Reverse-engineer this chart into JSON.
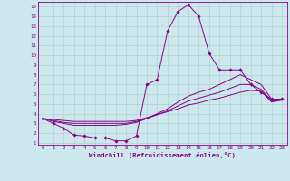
{
  "xlabel": "Windchill (Refroidissement éolien,°C)",
  "background_color": "#cce8ec",
  "grid_color": "#aacccc",
  "line_color": "#880088",
  "xlim": [
    -0.5,
    23.5
  ],
  "ylim": [
    0.8,
    15.5
  ],
  "xticks": [
    0,
    1,
    2,
    3,
    4,
    5,
    6,
    7,
    8,
    9,
    10,
    11,
    12,
    13,
    14,
    15,
    16,
    17,
    18,
    19,
    20,
    21,
    22,
    23
  ],
  "yticks": [
    1,
    2,
    3,
    4,
    5,
    6,
    7,
    8,
    9,
    10,
    11,
    12,
    13,
    14,
    15
  ],
  "line1_x": [
    0,
    1,
    2,
    3,
    4,
    5,
    6,
    7,
    8,
    9,
    10,
    11,
    12,
    13,
    14,
    15,
    16,
    17,
    18,
    19,
    20,
    21,
    22,
    23
  ],
  "line1_y": [
    3.5,
    3.0,
    2.5,
    1.8,
    1.7,
    1.5,
    1.5,
    1.2,
    1.2,
    1.7,
    7.0,
    7.5,
    12.5,
    14.5,
    15.2,
    14.0,
    10.2,
    8.5,
    8.5,
    8.5,
    7.0,
    6.2,
    5.5,
    5.5
  ],
  "line2_x": [
    0,
    1,
    2,
    3,
    4,
    5,
    6,
    7,
    8,
    9,
    10,
    11,
    12,
    13,
    14,
    15,
    16,
    17,
    18,
    19,
    20,
    21,
    22,
    23
  ],
  "line2_y": [
    3.5,
    3.2,
    3.0,
    2.8,
    2.8,
    2.8,
    2.8,
    2.8,
    2.9,
    3.1,
    3.5,
    4.0,
    4.5,
    5.2,
    5.8,
    6.2,
    6.5,
    7.0,
    7.5,
    8.0,
    7.5,
    7.0,
    5.5,
    5.5
  ],
  "line3_x": [
    0,
    1,
    2,
    3,
    4,
    5,
    6,
    7,
    8,
    9,
    10,
    11,
    12,
    13,
    14,
    15,
    16,
    17,
    18,
    19,
    20,
    21,
    22,
    23
  ],
  "line3_y": [
    3.5,
    3.3,
    3.1,
    3.0,
    3.0,
    3.0,
    3.0,
    3.0,
    3.0,
    3.2,
    3.5,
    3.9,
    4.3,
    4.8,
    5.3,
    5.6,
    5.9,
    6.2,
    6.6,
    7.0,
    7.0,
    6.5,
    5.3,
    5.4
  ],
  "line4_x": [
    0,
    1,
    2,
    3,
    4,
    5,
    6,
    7,
    8,
    9,
    10,
    11,
    12,
    13,
    14,
    15,
    16,
    17,
    18,
    19,
    20,
    21,
    22,
    23
  ],
  "line4_y": [
    3.5,
    3.4,
    3.3,
    3.2,
    3.2,
    3.2,
    3.2,
    3.2,
    3.2,
    3.3,
    3.6,
    3.9,
    4.2,
    4.5,
    4.9,
    5.1,
    5.4,
    5.6,
    5.9,
    6.2,
    6.4,
    6.3,
    5.2,
    5.4
  ]
}
